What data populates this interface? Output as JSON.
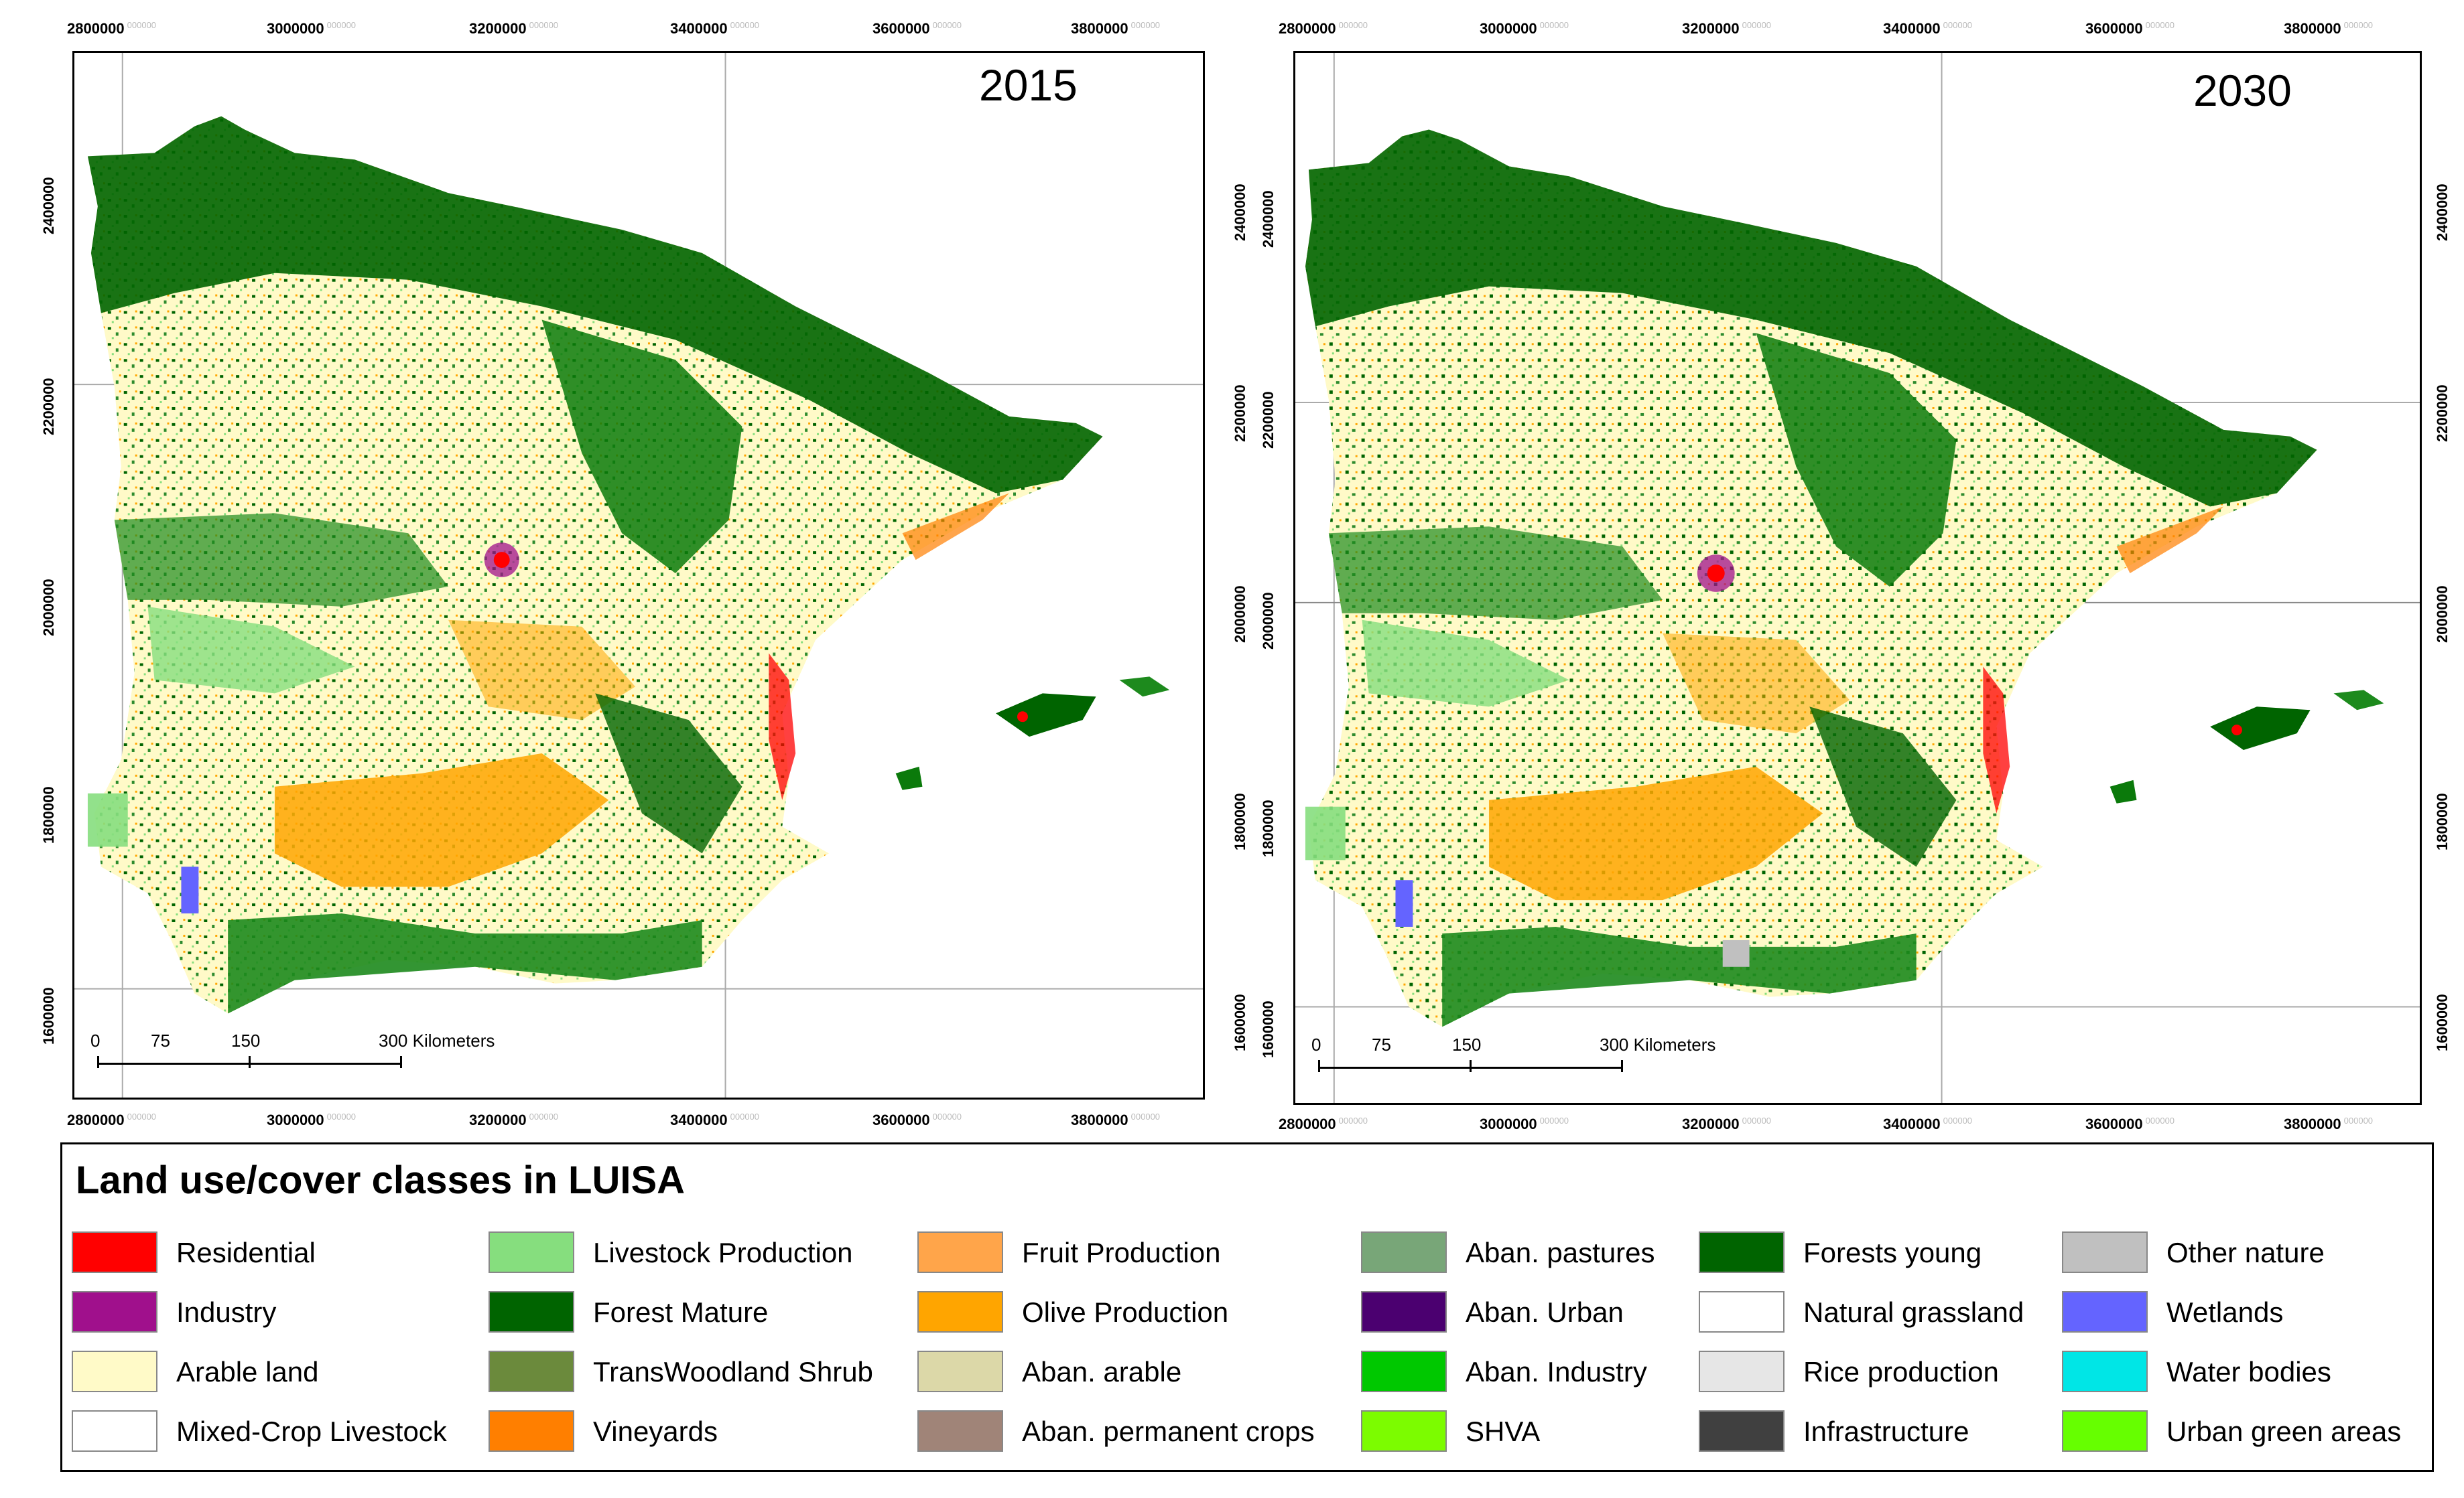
{
  "maps": [
    {
      "year": "2015",
      "x_ticks": [
        "2800000",
        "3000000",
        "3200000",
        "3400000",
        "3600000",
        "3800000"
      ],
      "y_ticks": [
        "2400000",
        "2200000",
        "2000000",
        "1800000",
        "1600000"
      ],
      "tick_superscript": "000000",
      "scale": {
        "labels": [
          "0",
          "75",
          "150",
          "300 Kilometers"
        ]
      }
    },
    {
      "year": "2030",
      "x_ticks": [
        "2800000",
        "3000000",
        "3200000",
        "3400000",
        "3600000",
        "3800000"
      ],
      "y_ticks": [
        "2400000",
        "2200000",
        "2000000",
        "1800000",
        "1600000"
      ],
      "tick_superscript": "000000",
      "scale": {
        "labels": [
          "0",
          "75",
          "150",
          "300 Kilometers"
        ]
      }
    }
  ],
  "legend": {
    "title": "Land use/cover classes in LUISA",
    "columns": [
      [
        {
          "label": "Residential",
          "color": "#ff0000"
        },
        {
          "label": "Industry",
          "color": "#a0108c"
        },
        {
          "label": "Arable land",
          "color": "#fffac8"
        },
        {
          "label": "Mixed-Crop Livestock",
          "color": "#ffffff"
        }
      ],
      [
        {
          "label": "Livestock Production",
          "color": "#86de7e"
        },
        {
          "label": "Forest Mature",
          "color": "#006400"
        },
        {
          "label": "TransWoodland Shrub",
          "color": "#6b8a3c"
        },
        {
          "label": "Vineyards",
          "color": "#ff7f00"
        }
      ],
      [
        {
          "label": "Fruit Production",
          "color": "#ffa54a"
        },
        {
          "label": "Olive Production",
          "color": "#ffa500"
        },
        {
          "label": "Aban. arable",
          "color": "#dcd8a8"
        },
        {
          "label": "Aban. permanent crops",
          "color": "#a08478"
        }
      ],
      [
        {
          "label": "Aban.  pastures",
          "color": "#78a678"
        },
        {
          "label": "Aban. Urban",
          "color": "#4b0070"
        },
        {
          "label": "Aban. Industry",
          "color": "#00c800"
        },
        {
          "label": "SHVA",
          "color": "#7cfc00"
        }
      ],
      [
        {
          "label": "Forests young",
          "color": "#006400"
        },
        {
          "label": "Natural grassland",
          "color": "#ffffff"
        },
        {
          "label": "Rice production",
          "color": "#e6e6e6"
        },
        {
          "label": "Infrastructure",
          "color": "#404040"
        }
      ],
      [
        {
          "label": "Other nature",
          "color": "#c0c0c0"
        },
        {
          "label": "Wetlands",
          "color": "#6464ff"
        },
        {
          "label": "Water bodies",
          "color": "#00e6e6"
        },
        {
          "label": "Urban green areas",
          "color": "#66ff00"
        }
      ]
    ]
  }
}
